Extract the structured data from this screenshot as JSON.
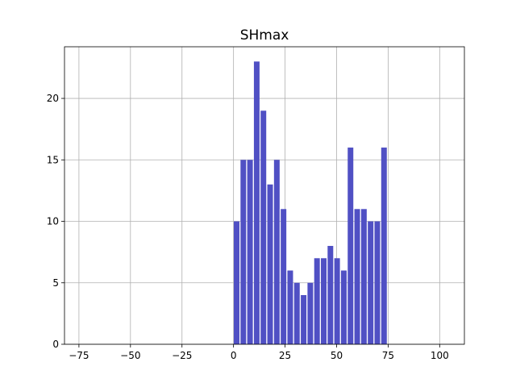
{
  "chart_data": {
    "type": "bar",
    "title": "SHmax",
    "xlabel": "",
    "ylabel": "",
    "xlim": [
      -82,
      112
    ],
    "ylim": [
      0,
      24.2
    ],
    "xticks": [
      -75,
      -50,
      -25,
      0,
      25,
      50,
      75,
      100
    ],
    "xtick_labels": [
      "−75",
      "−50",
      "−25",
      "0",
      "25",
      "50",
      "75",
      "100"
    ],
    "yticks": [
      0,
      5,
      10,
      15,
      20
    ],
    "ytick_labels": [
      "0",
      "5",
      "10",
      "15",
      "20"
    ],
    "grid": true,
    "bar_color": "#5050c4",
    "bin_width": 3.25,
    "bins": [
      {
        "x": 1.5,
        "value": 10
      },
      {
        "x": 4.75,
        "value": 15
      },
      {
        "x": 8.0,
        "value": 15
      },
      {
        "x": 11.25,
        "value": 23
      },
      {
        "x": 14.5,
        "value": 19
      },
      {
        "x": 17.75,
        "value": 13
      },
      {
        "x": 21.0,
        "value": 15
      },
      {
        "x": 24.25,
        "value": 11
      },
      {
        "x": 27.5,
        "value": 6
      },
      {
        "x": 30.75,
        "value": 5
      },
      {
        "x": 34.0,
        "value": 4
      },
      {
        "x": 37.25,
        "value": 5
      },
      {
        "x": 40.5,
        "value": 7
      },
      {
        "x": 43.75,
        "value": 7
      },
      {
        "x": 47.0,
        "value": 8
      },
      {
        "x": 50.25,
        "value": 7
      },
      {
        "x": 53.5,
        "value": 6
      },
      {
        "x": 56.75,
        "value": 16
      },
      {
        "x": 60.0,
        "value": 11
      },
      {
        "x": 63.25,
        "value": 11
      },
      {
        "x": 66.5,
        "value": 10
      },
      {
        "x": 69.75,
        "value": 10
      },
      {
        "x": 73.0,
        "value": 16
      }
    ]
  }
}
